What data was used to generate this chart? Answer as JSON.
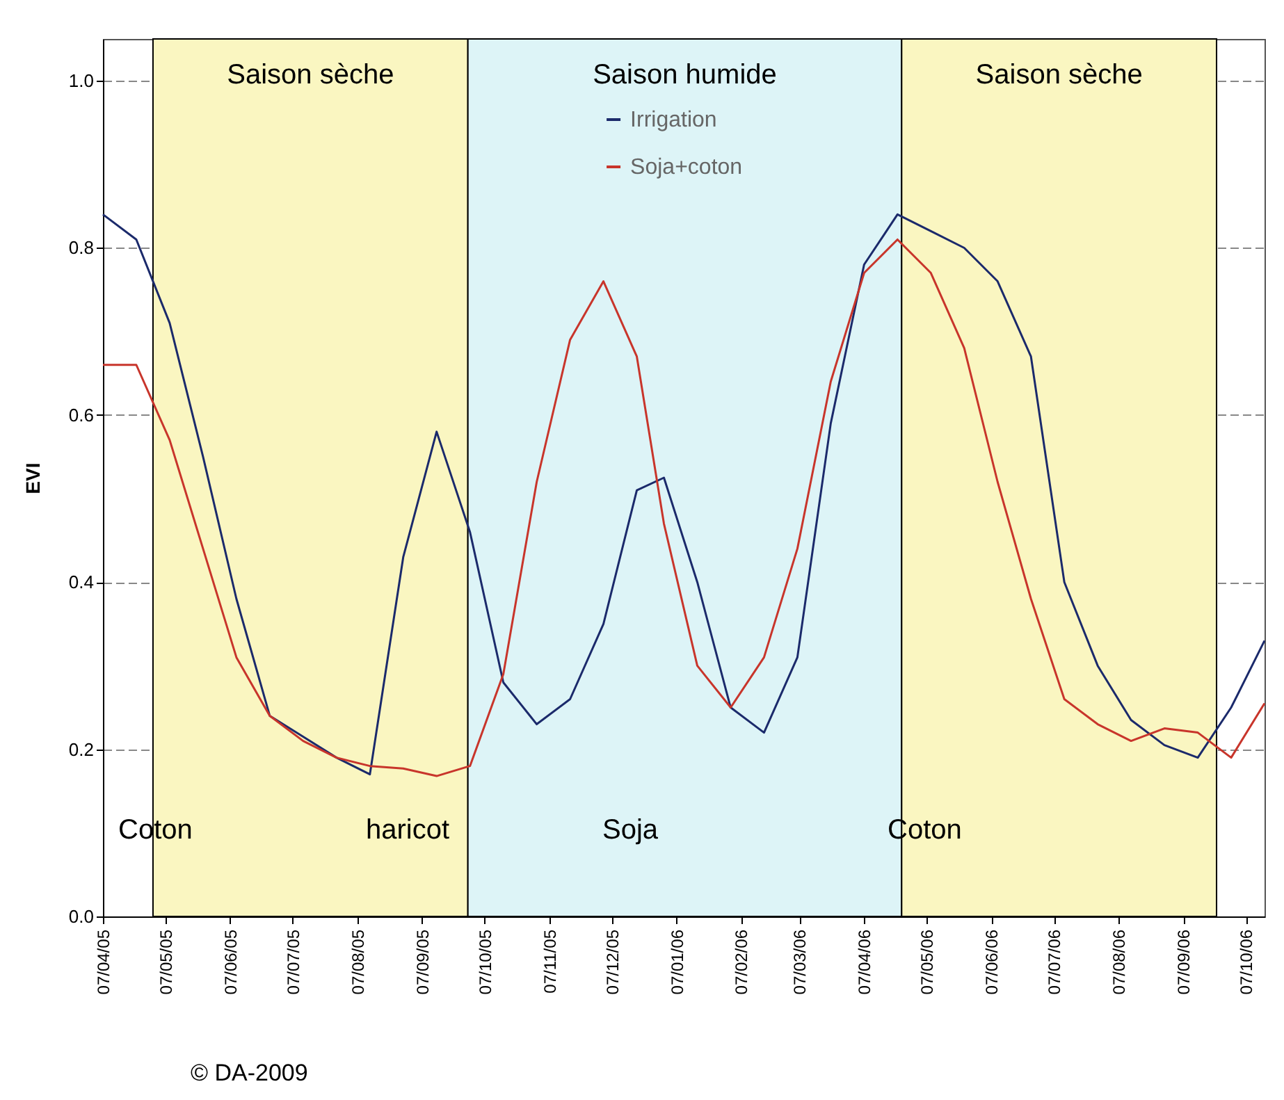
{
  "chart_data": {
    "type": "line",
    "ylabel": "EVI",
    "x": [
      "2005-04-07",
      "2005-04-23",
      "2005-05-09",
      "2005-05-25",
      "2005-06-10",
      "2005-06-26",
      "2005-07-12",
      "2005-07-28",
      "2005-08-13",
      "2005-08-29",
      "2005-09-14",
      "2005-09-30",
      "2005-10-16",
      "2005-11-01",
      "2005-11-17",
      "2005-12-03",
      "2005-12-19",
      "2006-01-01",
      "2006-01-17",
      "2006-02-02",
      "2006-02-18",
      "2006-03-06",
      "2006-03-22",
      "2006-04-07",
      "2006-04-23",
      "2006-05-09",
      "2006-05-25",
      "2006-06-10",
      "2006-06-26",
      "2006-07-12",
      "2006-07-28",
      "2006-08-13",
      "2006-08-29",
      "2006-09-14",
      "2006-09-30",
      "2006-10-16"
    ],
    "series": [
      {
        "name": "Irrigation",
        "color": "#1b2a6b",
        "values": [
          0.84,
          0.81,
          0.71,
          0.55,
          0.38,
          0.24,
          0.215,
          0.19,
          0.17,
          0.43,
          0.58,
          0.46,
          0.28,
          0.23,
          0.26,
          0.35,
          0.51,
          0.525,
          0.4,
          0.25,
          0.22,
          0.31,
          0.59,
          0.78,
          0.84,
          0.82,
          0.8,
          0.76,
          0.67,
          0.4,
          0.3,
          0.235,
          0.205,
          0.19,
          0.25,
          0.33
        ]
      },
      {
        "name": "Soja+coton",
        "color": "#c8352b",
        "values": [
          0.66,
          0.66,
          0.57,
          0.44,
          0.31,
          0.24,
          0.21,
          0.19,
          0.18,
          0.177,
          0.168,
          0.18,
          0.29,
          0.52,
          0.69,
          0.76,
          0.67,
          0.47,
          0.3,
          0.25,
          0.31,
          0.44,
          0.64,
          0.77,
          0.81,
          0.77,
          0.68,
          0.52,
          0.38,
          0.26,
          0.23,
          0.21,
          0.225,
          0.22,
          0.19,
          0.255
        ]
      }
    ],
    "xlim": [
      "2005-04-07",
      "2006-10-16"
    ],
    "xticks": [
      {
        "value": "2005-04-07",
        "label": "07/04/05"
      },
      {
        "value": "2005-05-07",
        "label": "07/05/05"
      },
      {
        "value": "2005-06-07",
        "label": "07/06/05"
      },
      {
        "value": "2005-07-07",
        "label": "07/07/05"
      },
      {
        "value": "2005-08-07",
        "label": "07/08/05"
      },
      {
        "value": "2005-09-07",
        "label": "07/09/05"
      },
      {
        "value": "2005-10-07",
        "label": "07/10/05"
      },
      {
        "value": "2005-11-07",
        "label": "07/11/05"
      },
      {
        "value": "2005-12-07",
        "label": "07/12/05"
      },
      {
        "value": "2006-01-07",
        "label": "07/01/06"
      },
      {
        "value": "2006-02-07",
        "label": "07/02/06"
      },
      {
        "value": "2006-03-07",
        "label": "07/03/06"
      },
      {
        "value": "2006-04-07",
        "label": "07/04/06"
      },
      {
        "value": "2006-05-07",
        "label": "07/05/06"
      },
      {
        "value": "2006-06-07",
        "label": "07/06/06"
      },
      {
        "value": "2006-07-07",
        "label": "07/07/06"
      },
      {
        "value": "2006-08-07",
        "label": "07/08/06"
      },
      {
        "value": "2006-09-07",
        "label": "07/09/06"
      },
      {
        "value": "2006-10-07",
        "label": "07/10/06"
      }
    ],
    "ylim": [
      0,
      1.05
    ],
    "yticks": [
      {
        "value": 0,
        "label": "0.0"
      },
      {
        "value": 0.2,
        "label": "0.2"
      },
      {
        "value": 0.4,
        "label": "0.4"
      },
      {
        "value": 0.6,
        "label": "0.6"
      },
      {
        "value": 0.8,
        "label": "0.8"
      },
      {
        "value": 1,
        "label": "1.0"
      }
    ],
    "bands": [
      {
        "axis": "x",
        "from": "2005-05-01",
        "to": "2005-09-29",
        "label": "Saison sèche",
        "color": "#faf6c1"
      },
      {
        "axis": "x",
        "from": "2005-09-29",
        "to": "2006-04-25",
        "label": "Saison humide",
        "color": "#ddf4f7"
      },
      {
        "axis": "x",
        "from": "2006-04-25",
        "to": "2006-09-23",
        "label": "Saison sèche",
        "color": "#faf6c1"
      }
    ],
    "annotations": [
      "Coton",
      "haricot",
      "Soja",
      "Coton",
      "© DA-2009"
    ],
    "grid": "y",
    "legend": "top",
    "line_style": "solid",
    "marker": "none"
  }
}
